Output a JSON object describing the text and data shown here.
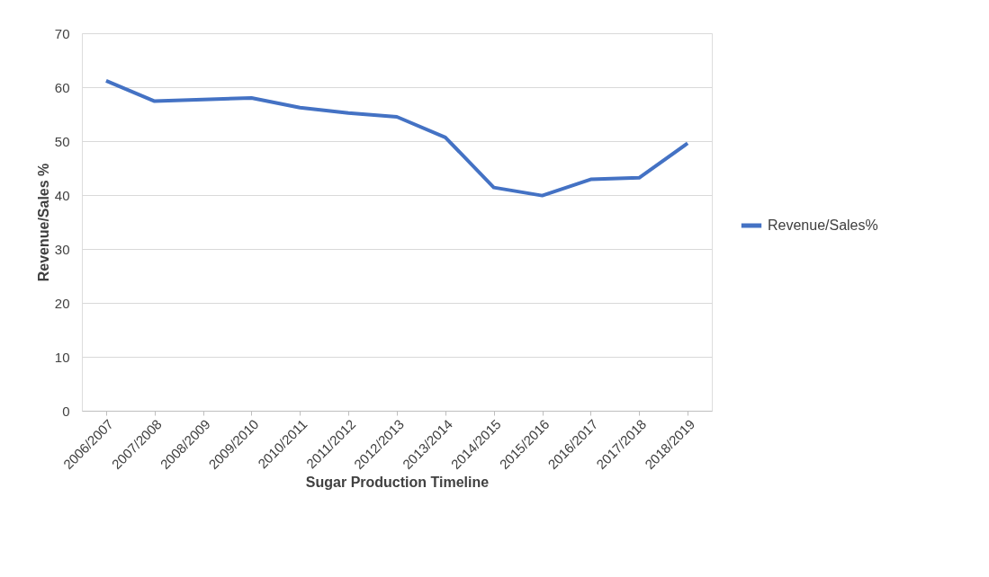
{
  "chart_data": {
    "type": "line",
    "xlabel": "Sugar Production Timeline",
    "ylabel": "Revenue/Sales %",
    "categories": [
      "2006/2007",
      "2007/2008",
      "2008/2009",
      "2009/2010",
      "2010/2011",
      "2011/2012",
      "2012/2013",
      "2013/2014",
      "2014/2015",
      "2015/2016",
      "2016/2017",
      "2017/2018",
      "2018/2019"
    ],
    "series": [
      {
        "name": "Revenue/Sales%",
        "color": "#4472c4",
        "values": [
          61.2,
          57.4,
          57.7,
          58.0,
          56.2,
          55.2,
          54.5,
          50.7,
          41.4,
          39.9,
          42.9,
          43.2,
          49.6
        ]
      }
    ],
    "ylim": [
      0,
      70
    ],
    "yticks": [
      0,
      10,
      20,
      30,
      40,
      50,
      60,
      70
    ],
    "grid": "y",
    "legend": "right",
    "marker": "none",
    "line_style": "solid"
  }
}
